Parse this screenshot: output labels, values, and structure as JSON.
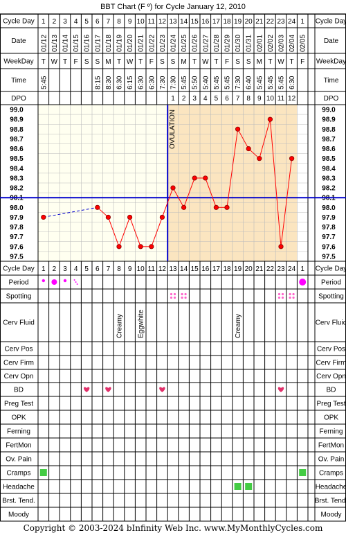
{
  "title": "BBT Chart (F º) for Cycle January 12, 2010",
  "footer": "Copyright © 2003-2024 bInfinity Web Inc.    www.MyMonthlyCycles.com",
  "colors": {
    "grid": "#000000",
    "pre_bg": "#fffff0",
    "post_bg": "#fbe5c0",
    "line": "#ff0000",
    "point": "#ff0000",
    "coverline": "#0000cc",
    "ovulation": "#0000cc",
    "period": "#ff00ff",
    "spotting": "#ff66cc",
    "bd": "#e0306a",
    "cramps": "#44cc44"
  },
  "row_labels": {
    "cycle_day": "Cycle Day",
    "date": "Date",
    "weekday": "WeekDay",
    "time": "Time",
    "dpo": "DPO",
    "period": "Period",
    "spotting": "Spotting",
    "cerv_fluid": "Cerv Fluid",
    "cerv_pos": "Cerv Pos",
    "cerv_firm": "Cerv Firm",
    "cerv_opn": "Cerv Opn",
    "bd": "BD",
    "preg_test": "Preg Test",
    "opk": "OPK",
    "ferning": "Ferning",
    "fertmon": "FertMon",
    "ov_pain": "Ov. Pain",
    "cramps": "Cramps",
    "headache": "Headache",
    "brst_tend": "Brst. Tend.",
    "moody": "Moody"
  },
  "ovulation_label": "OVULATION",
  "cycle_days": [
    "1",
    "2",
    "3",
    "4",
    "5",
    "6",
    "7",
    "8",
    "9",
    "10",
    "11",
    "12",
    "13",
    "14",
    "15",
    "16",
    "17",
    "18",
    "19",
    "20",
    "21",
    "22",
    "23",
    "24",
    "1"
  ],
  "dates": [
    "01/12",
    "01/13",
    "01/14",
    "01/15",
    "01/16",
    "01/17",
    "01/18",
    "01/19",
    "01/20",
    "01/21",
    "01/22",
    "01/23",
    "01/24",
    "01/25",
    "01/26",
    "01/27",
    "01/28",
    "01/29",
    "01/30",
    "01/31",
    "02/01",
    "02/02",
    "02/03",
    "02/04",
    "02/05"
  ],
  "weekdays": [
    "T",
    "W",
    "T",
    "F",
    "S",
    "S",
    "M",
    "T",
    "W",
    "T",
    "F",
    "S",
    "S",
    "M",
    "T",
    "W",
    "T",
    "F",
    "S",
    "S",
    "M",
    "T",
    "W",
    "T",
    "F"
  ],
  "times": [
    "5:45",
    "",
    "",
    "",
    "",
    "8:15",
    "8:30",
    "6:30",
    "6:15",
    "6:30",
    "6:30",
    "7:30",
    "7:30",
    "5:45",
    "5:50",
    "5:40",
    "5:45",
    "5:45",
    "7:30",
    "6:40",
    "5:45",
    "5:45",
    "5:45",
    "6:30",
    ""
  ],
  "dpo": [
    "",
    "",
    "",
    "",
    "",
    "",
    "",
    "",
    "",
    "",
    "",
    "",
    "1",
    "2",
    "3",
    "4",
    "5",
    "6",
    "7",
    "8",
    "9",
    "10",
    "11",
    "12",
    ""
  ],
  "cerv_fluid": [
    "",
    "",
    "",
    "",
    "",
    "",
    "",
    "Creamy",
    "",
    "Eggwhite",
    "",
    "",
    "",
    "",
    "",
    "",
    "",
    "",
    "Creamy",
    "",
    "",
    "",
    "",
    "",
    ""
  ],
  "chart_data": {
    "type": "line",
    "x": [
      "1",
      "2",
      "3",
      "4",
      "5",
      "6",
      "7",
      "8",
      "9",
      "10",
      "11",
      "12",
      "13",
      "14",
      "15",
      "16",
      "17",
      "18",
      "19",
      "20",
      "21",
      "22",
      "23",
      "24"
    ],
    "temps": [
      97.9,
      null,
      null,
      null,
      null,
      98.0,
      97.9,
      97.6,
      97.9,
      97.6,
      97.6,
      97.9,
      98.2,
      98.0,
      98.3,
      98.3,
      98.0,
      98.0,
      98.8,
      98.6,
      98.5,
      98.9,
      97.6,
      98.5
    ],
    "y_ticks": [
      "99.0",
      "98.9",
      "98.8",
      "98.7",
      "98.6",
      "98.5",
      "98.4",
      "98.3",
      "98.2",
      "98.1",
      "98.0",
      "97.9",
      "97.8",
      "97.7",
      "97.6",
      "97.5"
    ],
    "ylim": [
      97.5,
      99.0
    ],
    "coverline": 98.1,
    "ovulation_day": 12
  },
  "markers": {
    "period": {
      "1": "small",
      "2": "large",
      "3": "small",
      "4": "dots",
      "25": "xlarge"
    },
    "spotting": [
      13,
      14,
      23,
      24
    ],
    "bd": [
      5,
      7,
      12,
      23
    ],
    "cramps": [
      1,
      25
    ],
    "headache": [
      19,
      20
    ]
  }
}
